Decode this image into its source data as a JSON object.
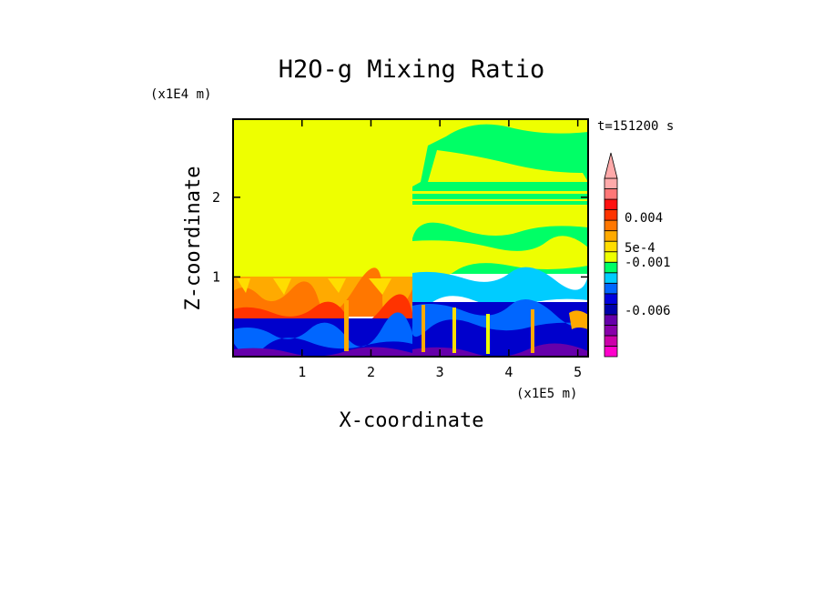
{
  "chart_data": {
    "type": "heatmap",
    "title": "H2O-g Mixing Ratio",
    "xlabel": "X-coordinate",
    "ylabel": "Z-coordinate",
    "x_unit": "(x1E5 m)",
    "y_unit": "(x1E4 m)",
    "time_label": "t=151200 s",
    "xlim": [
      0,
      5.15
    ],
    "ylim": [
      0,
      2.98
    ],
    "x_ticks": [
      "1",
      "2",
      "3",
      "4",
      "5"
    ],
    "x_tick_values": [
      1,
      2,
      3,
      4,
      5
    ],
    "y_ticks": [
      "1",
      "2"
    ],
    "y_tick_values": [
      1,
      2
    ],
    "colorbar": {
      "tick_labels": [
        "0.004",
        "5e-4",
        "-0.001",
        "-0.006"
      ],
      "colors": [
        "#ff00cc",
        "#cc00aa",
        "#8800aa",
        "#6600aa",
        "#0000aa",
        "#0000dd",
        "#0066ff",
        "#00ccff",
        "#00ff66",
        "#eeff00",
        "#ffdd00",
        "#ffaa00",
        "#ff7700",
        "#ff3300",
        "#ff1111",
        "#ff7777",
        "#ffaaaa"
      ],
      "extend": "max"
    },
    "regions": [
      {
        "name": "left-upper",
        "x": [
          0,
          2.57
        ],
        "z": [
          1.02,
          2.98
        ],
        "color": "#eeff00"
      },
      {
        "name": "left-warm-band",
        "x": [
          0,
          2.57
        ],
        "z": [
          0.52,
          1.02
        ],
        "color": "#ffaa00"
      },
      {
        "name": "left-lower",
        "x": [
          0,
          2.57
        ],
        "z": [
          0,
          0.52
        ],
        "color": "#0000cc"
      },
      {
        "name": "right-upper",
        "x": [
          2.57,
          5.15
        ],
        "z": [
          1.0,
          2.98
        ],
        "color": "#00ff66"
      },
      {
        "name": "right-lower",
        "x": [
          2.57,
          5.15
        ],
        "z": [
          0,
          0.6
        ],
        "color": "#0000cc"
      }
    ]
  }
}
